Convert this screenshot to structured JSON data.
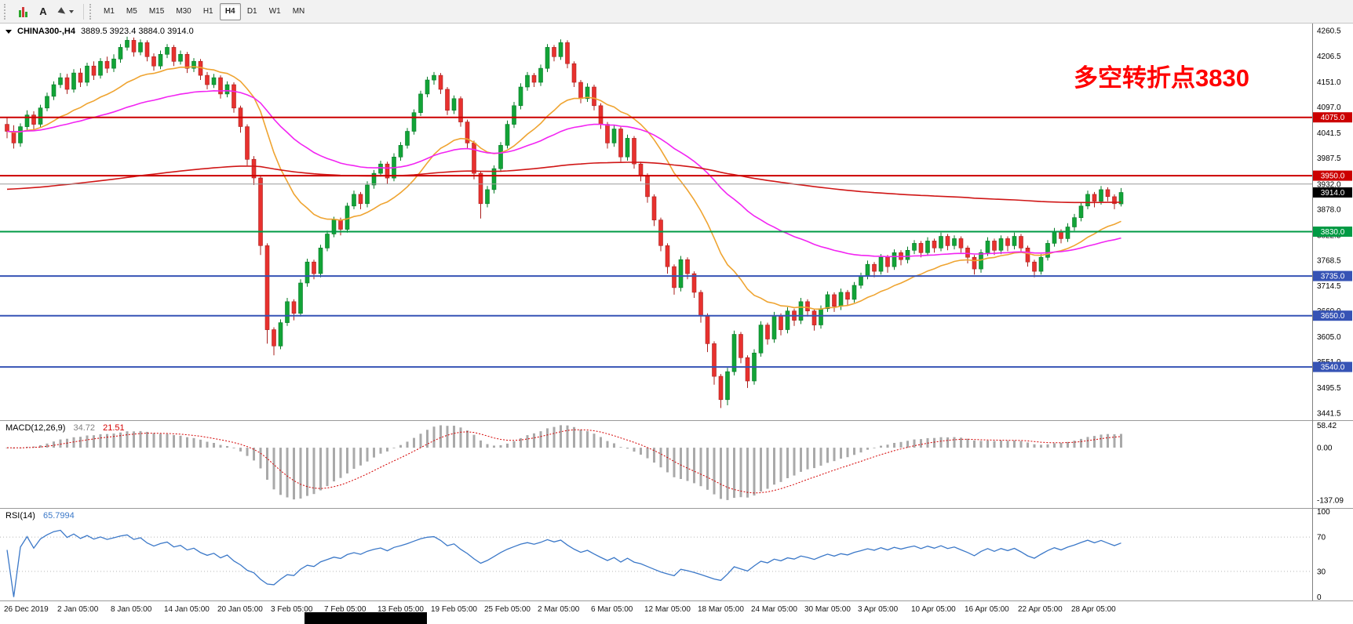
{
  "toolbar": {
    "text_tool_label": "A",
    "timeframes": [
      "M1",
      "M5",
      "M15",
      "M30",
      "H1",
      "H4",
      "D1",
      "W1",
      "MN"
    ],
    "active_timeframe": "H4"
  },
  "annotation": {
    "text": "多空转折点3830"
  },
  "colors": {
    "up": "#12a437",
    "up_dark": "#067a26",
    "down": "#e8312e",
    "down_dark": "#a9201e",
    "ma_fast": "#efa431",
    "ma_mid": "#f224f2",
    "ma_slow": "#d01616",
    "macd_hist": "#a9a9a9",
    "macd_signal": "#d40000",
    "rsi": "#3b78c8",
    "annotation_red": "#ff0000",
    "current_price_bg": "#000000"
  },
  "chart_data": {
    "type": "candlestick",
    "symbol": "CHINA300-",
    "timeframe": "H4",
    "header": "CHINA300-,H4",
    "header_ohlc": "3889.5 3923.4 3884.0 3914.0",
    "current_bar": {
      "open": 3889.5,
      "high": 3923.4,
      "low": 3884.0,
      "close": 3914.0
    },
    "price_range_visible": [
      3441.5,
      4260.5
    ],
    "y_axis_labels": [
      "4260.5",
      "4206.5",
      "4151.0",
      "4097.0",
      "4041.5",
      "3987.5",
      "3932.0",
      "3878.0",
      "3822.5",
      "3768.5",
      "3714.5",
      "3660.0",
      "3605.0",
      "3551.0",
      "3495.5",
      "3441.5"
    ],
    "time_labels": [
      "26 Dec 2019",
      "2 Jan 05:00",
      "8 Jan 05:00",
      "14 Jan 05:00",
      "20 Jan 05:00",
      "3 Feb 05:00",
      "7 Feb 05:00",
      "13 Feb 05:00",
      "19 Feb 05:00",
      "25 Feb 05:00",
      "2 Mar 05:00",
      "6 Mar 05:00",
      "12 Mar 05:00",
      "18 Mar 05:00",
      "24 Mar 05:00",
      "30 Mar 05:00",
      "3 Apr 05:00",
      "10 Apr 05:00",
      "16 Apr 05:00",
      "22 Apr 05:00",
      "28 Apr 05:00"
    ],
    "horizontal_levels": [
      {
        "price": 4075.0,
        "label": "4075.0",
        "color": "#cc0000",
        "width": 2,
        "box": true
      },
      {
        "price": 3950.0,
        "label": "3950.0",
        "color": "#cc0000",
        "width": 2,
        "box": true
      },
      {
        "price": 3932.0,
        "label": "",
        "color": "#9a9a9a",
        "width": 1,
        "box": false
      },
      {
        "price": 3830.0,
        "label": "3830.0",
        "color": "#009a44",
        "width": 2,
        "box": true
      },
      {
        "price": 3735.0,
        "label": "3735.0",
        "color": "#3653b5",
        "width": 2,
        "box": true
      },
      {
        "price": 3650.0,
        "label": "3650.0",
        "color": "#3653b5",
        "width": 2,
        "box": true
      },
      {
        "price": 3540.0,
        "label": "3540.0",
        "color": "#3653b5",
        "width": 2,
        "box": true
      }
    ],
    "current_price": {
      "value": 3914.0,
      "label": "3914.0"
    },
    "candles_ohlc": [
      [
        4060,
        4075,
        4030,
        4045
      ],
      [
        4045,
        4058,
        4008,
        4020
      ],
      [
        4020,
        4062,
        4012,
        4055
      ],
      [
        4055,
        4090,
        4048,
        4080
      ],
      [
        4080,
        4088,
        4048,
        4060
      ],
      [
        4060,
        4102,
        4052,
        4095
      ],
      [
        4095,
        4128,
        4088,
        4120
      ],
      [
        4120,
        4152,
        4112,
        4145
      ],
      [
        4145,
        4170,
        4138,
        4160
      ],
      [
        4160,
        4168,
        4125,
        4135
      ],
      [
        4135,
        4178,
        4128,
        4170
      ],
      [
        4170,
        4180,
        4140,
        4150
      ],
      [
        4150,
        4192,
        4142,
        4185
      ],
      [
        4185,
        4195,
        4155,
        4165
      ],
      [
        4165,
        4202,
        4158,
        4195
      ],
      [
        4195,
        4205,
        4170,
        4180
      ],
      [
        4180,
        4210,
        4172,
        4200
      ],
      [
        4200,
        4232,
        4192,
        4225
      ],
      [
        4225,
        4248,
        4218,
        4240
      ],
      [
        4240,
        4246,
        4205,
        4215
      ],
      [
        4215,
        4242,
        4208,
        4235
      ],
      [
        4235,
        4240,
        4195,
        4205
      ],
      [
        4205,
        4212,
        4175,
        4185
      ],
      [
        4185,
        4218,
        4178,
        4210
      ],
      [
        4210,
        4232,
        4202,
        4225
      ],
      [
        4225,
        4230,
        4185,
        4195
      ],
      [
        4195,
        4218,
        4188,
        4210
      ],
      [
        4210,
        4215,
        4170,
        4180
      ],
      [
        4180,
        4202,
        4172,
        4195
      ],
      [
        4195,
        4200,
        4155,
        4165
      ],
      [
        4165,
        4172,
        4135,
        4145
      ],
      [
        4145,
        4168,
        4138,
        4160
      ],
      [
        4160,
        4165,
        4115,
        4125
      ],
      [
        4125,
        4152,
        4118,
        4145
      ],
      [
        4145,
        4150,
        4085,
        4095
      ],
      [
        4095,
        4100,
        4042,
        4055
      ],
      [
        4055,
        4060,
        3972,
        3985
      ],
      [
        3985,
        3992,
        3930,
        3945
      ],
      [
        3945,
        3950,
        3780,
        3800
      ],
      [
        3800,
        3805,
        3590,
        3620
      ],
      [
        3620,
        3625,
        3565,
        3585
      ],
      [
        3585,
        3642,
        3578,
        3635
      ],
      [
        3635,
        3688,
        3628,
        3680
      ],
      [
        3680,
        3685,
        3640,
        3655
      ],
      [
        3655,
        3728,
        3648,
        3720
      ],
      [
        3720,
        3772,
        3712,
        3765
      ],
      [
        3765,
        3770,
        3728,
        3740
      ],
      [
        3740,
        3802,
        3732,
        3795
      ],
      [
        3795,
        3832,
        3788,
        3825
      ],
      [
        3825,
        3862,
        3818,
        3855
      ],
      [
        3855,
        3860,
        3822,
        3835
      ],
      [
        3835,
        3892,
        3828,
        3885
      ],
      [
        3885,
        3918,
        3878,
        3910
      ],
      [
        3910,
        3915,
        3878,
        3890
      ],
      [
        3890,
        3938,
        3882,
        3930
      ],
      [
        3930,
        3962,
        3922,
        3955
      ],
      [
        3955,
        3982,
        3948,
        3975
      ],
      [
        3975,
        3980,
        3932,
        3945
      ],
      [
        3945,
        3998,
        3938,
        3990
      ],
      [
        3990,
        4022,
        3982,
        4015
      ],
      [
        4015,
        4052,
        4008,
        4045
      ],
      [
        4045,
        4092,
        4038,
        4085
      ],
      [
        4085,
        4132,
        4078,
        4125
      ],
      [
        4125,
        4162,
        4118,
        4155
      ],
      [
        4155,
        4172,
        4145,
        4165
      ],
      [
        4165,
        4170,
        4125,
        4135
      ],
      [
        4135,
        4140,
        4080,
        4090
      ],
      [
        4090,
        4122,
        4082,
        4115
      ],
      [
        4115,
        4120,
        4055,
        4065
      ],
      [
        4065,
        4070,
        4008,
        4020
      ],
      [
        4020,
        4025,
        3942,
        3955
      ],
      [
        3955,
        3960,
        3858,
        3890
      ],
      [
        3890,
        3928,
        3882,
        3920
      ],
      [
        3920,
        3972,
        3912,
        3965
      ],
      [
        3965,
        4022,
        3958,
        4015
      ],
      [
        4015,
        4068,
        4008,
        4060
      ],
      [
        4060,
        4108,
        4052,
        4100
      ],
      [
        4100,
        4148,
        4092,
        4140
      ],
      [
        4140,
        4172,
        4132,
        4165
      ],
      [
        4165,
        4170,
        4140,
        4150
      ],
      [
        4150,
        4188,
        4142,
        4180
      ],
      [
        4180,
        4232,
        4172,
        4225
      ],
      [
        4225,
        4230,
        4195,
        4205
      ],
      [
        4205,
        4242,
        4198,
        4235
      ],
      [
        4235,
        4240,
        4180,
        4190
      ],
      [
        4190,
        4195,
        4140,
        4150
      ],
      [
        4150,
        4155,
        4105,
        4115
      ],
      [
        4115,
        4148,
        4108,
        4140
      ],
      [
        4140,
        4145,
        4090,
        4100
      ],
      [
        4100,
        4105,
        4050,
        4060
      ],
      [
        4060,
        4065,
        4008,
        4020
      ],
      [
        4020,
        4058,
        4012,
        4050
      ],
      [
        4050,
        4055,
        3980,
        3990
      ],
      [
        3990,
        4038,
        3982,
        4030
      ],
      [
        4030,
        4035,
        3965,
        3975
      ],
      [
        3975,
        3980,
        3938,
        3950
      ],
      [
        3950,
        3955,
        3892,
        3905
      ],
      [
        3905,
        3910,
        3842,
        3855
      ],
      [
        3855,
        3860,
        3788,
        3800
      ],
      [
        3800,
        3805,
        3740,
        3755
      ],
      [
        3755,
        3760,
        3695,
        3710
      ],
      [
        3710,
        3778,
        3702,
        3770
      ],
      [
        3770,
        3775,
        3728,
        3740
      ],
      [
        3740,
        3745,
        3688,
        3700
      ],
      [
        3700,
        3705,
        3635,
        3650
      ],
      [
        3650,
        3655,
        3572,
        3590
      ],
      [
        3590,
        3595,
        3502,
        3520
      ],
      [
        3520,
        3525,
        3452,
        3470
      ],
      [
        3470,
        3538,
        3458,
        3530
      ],
      [
        3530,
        3618,
        3522,
        3610
      ],
      [
        3610,
        3615,
        3548,
        3560
      ],
      [
        3560,
        3565,
        3495,
        3510
      ],
      [
        3510,
        3578,
        3502,
        3570
      ],
      [
        3570,
        3638,
        3562,
        3630
      ],
      [
        3630,
        3635,
        3588,
        3600
      ],
      [
        3600,
        3658,
        3592,
        3650
      ],
      [
        3650,
        3655,
        3608,
        3620
      ],
      [
        3620,
        3668,
        3612,
        3660
      ],
      [
        3660,
        3665,
        3628,
        3640
      ],
      [
        3640,
        3688,
        3632,
        3680
      ],
      [
        3680,
        3685,
        3648,
        3660
      ],
      [
        3660,
        3665,
        3618,
        3630
      ],
      [
        3630,
        3672,
        3622,
        3665
      ],
      [
        3665,
        3702,
        3658,
        3695
      ],
      [
        3695,
        3700,
        3658,
        3670
      ],
      [
        3670,
        3708,
        3662,
        3700
      ],
      [
        3700,
        3705,
        3672,
        3685
      ],
      [
        3685,
        3722,
        3678,
        3715
      ],
      [
        3715,
        3742,
        3708,
        3735
      ],
      [
        3735,
        3768,
        3728,
        3760
      ],
      [
        3760,
        3765,
        3732,
        3745
      ],
      [
        3745,
        3782,
        3738,
        3775
      ],
      [
        3775,
        3780,
        3742,
        3755
      ],
      [
        3755,
        3792,
        3748,
        3785
      ],
      [
        3785,
        3790,
        3758,
        3770
      ],
      [
        3770,
        3798,
        3762,
        3790
      ],
      [
        3790,
        3812,
        3782,
        3805
      ],
      [
        3805,
        3810,
        3775,
        3785
      ],
      [
        3785,
        3818,
        3778,
        3810
      ],
      [
        3810,
        3815,
        3785,
        3795
      ],
      [
        3795,
        3828,
        3788,
        3820
      ],
      [
        3820,
        3825,
        3790,
        3800
      ],
      [
        3800,
        3822,
        3792,
        3815
      ],
      [
        3815,
        3820,
        3785,
        3795
      ],
      [
        3795,
        3800,
        3762,
        3775
      ],
      [
        3775,
        3780,
        3738,
        3750
      ],
      [
        3750,
        3792,
        3742,
        3785
      ],
      [
        3785,
        3818,
        3778,
        3810
      ],
      [
        3810,
        3815,
        3780,
        3790
      ],
      [
        3790,
        3822,
        3782,
        3815
      ],
      [
        3815,
        3820,
        3788,
        3800
      ],
      [
        3800,
        3828,
        3792,
        3820
      ],
      [
        3820,
        3825,
        3785,
        3795
      ],
      [
        3795,
        3800,
        3755,
        3765
      ],
      [
        3765,
        3770,
        3732,
        3745
      ],
      [
        3745,
        3782,
        3738,
        3775
      ],
      [
        3775,
        3812,
        3768,
        3805
      ],
      [
        3805,
        3838,
        3798,
        3830
      ],
      [
        3830,
        3835,
        3805,
        3815
      ],
      [
        3815,
        3848,
        3808,
        3840
      ],
      [
        3840,
        3868,
        3832,
        3860
      ],
      [
        3860,
        3892,
        3852,
        3885
      ],
      [
        3885,
        3918,
        3878,
        3910
      ],
      [
        3910,
        3915,
        3882,
        3895
      ],
      [
        3895,
        3928,
        3888,
        3920
      ],
      [
        3920,
        3925,
        3895,
        3905
      ],
      [
        3905,
        3910,
        3878,
        3890
      ],
      [
        3889.5,
        3923.4,
        3884,
        3914
      ]
    ],
    "indicators": {
      "macd": {
        "label": "MACD(12,26,9)",
        "values": [
          "34.72",
          "21.51"
        ],
        "axis_labels": [
          "58.42",
          "0.00",
          "-137.09"
        ],
        "axis_values": [
          58.42,
          0,
          -137.09
        ]
      },
      "rsi": {
        "label": "RSI(14)",
        "value": "65.7994",
        "axis_labels": [
          "100",
          "70",
          "30",
          "0"
        ],
        "axis_values": [
          100,
          70,
          30,
          0
        ]
      }
    }
  }
}
